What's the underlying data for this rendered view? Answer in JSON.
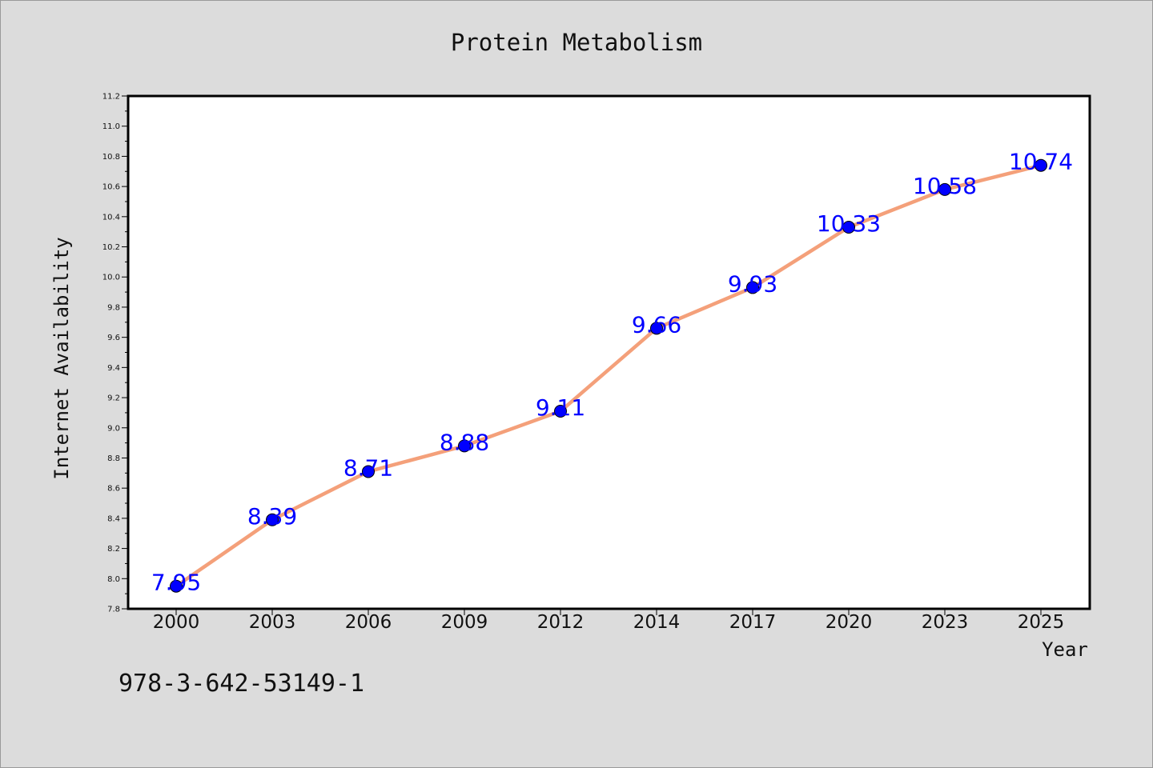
{
  "chart_data": {
    "type": "line",
    "title": "Protein Metabolism",
    "xlabel": "Year",
    "ylabel": "Internet Availability",
    "categories": [
      "2000",
      "2003",
      "2006",
      "2009",
      "2012",
      "2014",
      "2017",
      "2020",
      "2023",
      "2025"
    ],
    "series": [
      {
        "values": [
          7.95,
          8.39,
          8.71,
          8.88,
          9.11,
          9.66,
          9.93,
          10.33,
          10.58,
          10.74
        ],
        "line_color": "#f4a07a",
        "marker_color": "#0000ff"
      }
    ],
    "data_labels": [
      "7.95",
      "8.39",
      "8.71",
      "8.88",
      "9.11",
      "9.66",
      "9.93",
      "10.33",
      "10.58",
      "10.74"
    ],
    "ylim": [
      7.8,
      11.2
    ],
    "yticks": [
      "7.8",
      "8.0",
      "8.2",
      "8.4",
      "8.6",
      "8.8",
      "9.0",
      "9.2",
      "9.4",
      "9.6",
      "9.8",
      "10.0",
      "10.2",
      "10.4",
      "10.6",
      "10.8",
      "11.0",
      "11.2"
    ],
    "grid": false,
    "label_color": "#0000ff"
  },
  "footer": {
    "isbn": "978-3-642-53149-1"
  }
}
